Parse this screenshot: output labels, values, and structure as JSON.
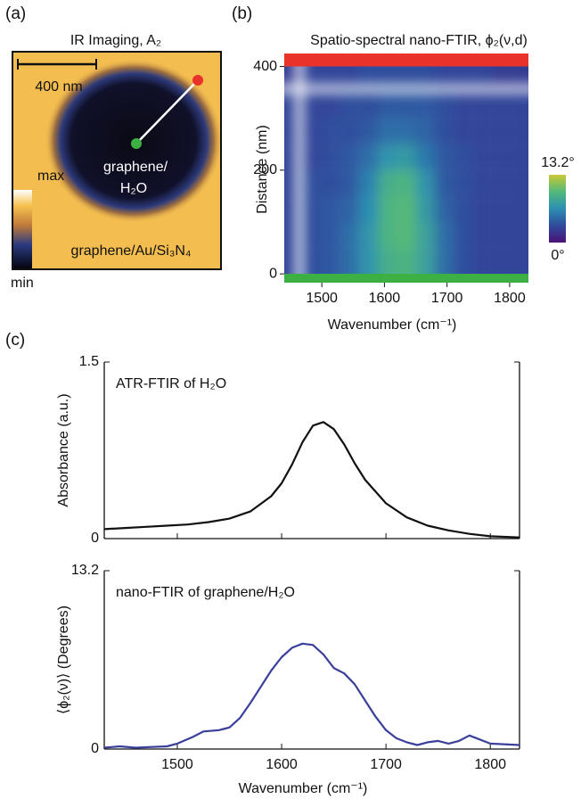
{
  "panel_a": {
    "label": "(a)",
    "title": "IR Imaging, A₂",
    "scale_bar": "400 nm",
    "max": "max",
    "min": "min",
    "region_inner_1": "graphene/",
    "region_inner_2": "H₂O",
    "region_outer": "graphene/Au/Si₃N₄"
  },
  "chart_data": [
    {
      "type": "heatmap",
      "panel_label": "(b)",
      "title": "Spatio-spectral nano-FTIR, ϕ₂(ν,d)",
      "xlabel": "Wavenumber (cm⁻¹)",
      "ylabel": "Distance (nm)",
      "x": [
        1455,
        1485,
        1515,
        1545,
        1575,
        1605,
        1635,
        1665,
        1695,
        1725,
        1755,
        1785,
        1815
      ],
      "y": [
        25,
        75,
        125,
        175,
        225,
        275,
        325,
        375
      ],
      "z": [
        [
          3,
          3.5,
          4,
          5,
          7,
          9,
          9.5,
          8,
          5,
          3.5,
          3,
          3,
          3
        ],
        [
          3,
          3.5,
          4,
          5,
          7,
          9.5,
          10,
          8,
          5,
          3.5,
          3,
          3,
          3
        ],
        [
          3,
          3.5,
          4,
          4.5,
          6.5,
          9.5,
          10,
          7.5,
          4.5,
          3.5,
          3,
          3,
          3
        ],
        [
          3,
          3.5,
          3.5,
          4,
          6,
          9,
          9.5,
          7,
          4,
          3.5,
          3,
          3,
          3
        ],
        [
          3,
          3,
          3.5,
          4,
          5,
          7,
          7.5,
          5.5,
          4,
          3.5,
          3,
          3,
          3
        ],
        [
          3,
          3,
          3.5,
          3.5,
          4,
          5,
          5,
          4.5,
          3.5,
          3,
          3,
          3,
          3
        ],
        [
          3,
          3,
          3,
          3.5,
          3.5,
          4,
          4,
          4,
          3.5,
          3,
          3,
          3,
          3
        ],
        [
          2.5,
          3,
          3,
          3,
          3.5,
          3.5,
          3.5,
          3.5,
          3,
          3,
          3,
          2.5,
          2.5
        ]
      ],
      "xlim": [
        1440,
        1830
      ],
      "xticks": [
        1500,
        1600,
        1700,
        1800
      ],
      "ylim": [
        -17,
        425
      ],
      "yticks": [
        0,
        200,
        400
      ],
      "zlim": [
        0,
        13.2
      ],
      "zticks": [
        {
          "value": 0,
          "label": "0°"
        },
        {
          "value": 13.2,
          "label": "13.2°"
        }
      ],
      "colormap": [
        "#4a1276",
        "#2f4a9c",
        "#2b8fb3",
        "#52b97a",
        "#c9c934"
      ]
    },
    {
      "type": "line",
      "panel_label": "(c)",
      "annotation": "ATR-FTIR of H₂O",
      "ylabel": "Absorbance (a.u.)",
      "x": [
        1430,
        1450,
        1470,
        1490,
        1510,
        1530,
        1550,
        1570,
        1590,
        1600,
        1610,
        1620,
        1630,
        1640,
        1650,
        1660,
        1670,
        1680,
        1700,
        1720,
        1740,
        1760,
        1780,
        1800,
        1828
      ],
      "series": [
        {
          "color": "#111111",
          "values": [
            0.08,
            0.09,
            0.1,
            0.11,
            0.12,
            0.14,
            0.17,
            0.23,
            0.36,
            0.47,
            0.63,
            0.82,
            0.96,
            0.99,
            0.93,
            0.8,
            0.64,
            0.5,
            0.3,
            0.18,
            0.11,
            0.07,
            0.04,
            0.02,
            0.01
          ]
        }
      ],
      "xlim": [
        1430,
        1828
      ],
      "xticks": [
        1500,
        1600,
        1700,
        1800
      ],
      "ylim": [
        0,
        1.5
      ],
      "yticks": [
        0,
        1.5
      ],
      "xtick_labels": false
    },
    {
      "type": "line",
      "annotation": "nano-FTIR of graphene/H₂O",
      "ylabel": "⟨ϕ₂(ν)⟩  (Degrees)",
      "xlabel": "Wavenumber (cm⁻¹)",
      "x": [
        1430,
        1445,
        1460,
        1475,
        1490,
        1500,
        1515,
        1525,
        1540,
        1550,
        1560,
        1570,
        1580,
        1590,
        1600,
        1610,
        1620,
        1630,
        1640,
        1650,
        1660,
        1670,
        1680,
        1690,
        1700,
        1710,
        1720,
        1730,
        1740,
        1750,
        1760,
        1770,
        1780,
        1800,
        1828
      ],
      "series": [
        {
          "color": "#3a3f9a",
          "values": [
            0.1,
            0.2,
            0.1,
            0.15,
            0.2,
            0.4,
            0.9,
            1.3,
            1.4,
            1.6,
            2.3,
            3.4,
            4.6,
            5.8,
            6.8,
            7.5,
            7.8,
            7.7,
            7.0,
            6.0,
            5.6,
            4.8,
            3.6,
            2.4,
            1.4,
            0.8,
            0.5,
            0.3,
            0.5,
            0.6,
            0.4,
            0.6,
            1.0,
            0.4,
            0.3
          ]
        }
      ],
      "xlim": [
        1430,
        1828
      ],
      "xticks": [
        1500,
        1600,
        1700,
        1800
      ],
      "ylim": [
        0,
        13.2
      ],
      "yticks": [
        0,
        13.2
      ],
      "xtick_labels": true
    }
  ]
}
